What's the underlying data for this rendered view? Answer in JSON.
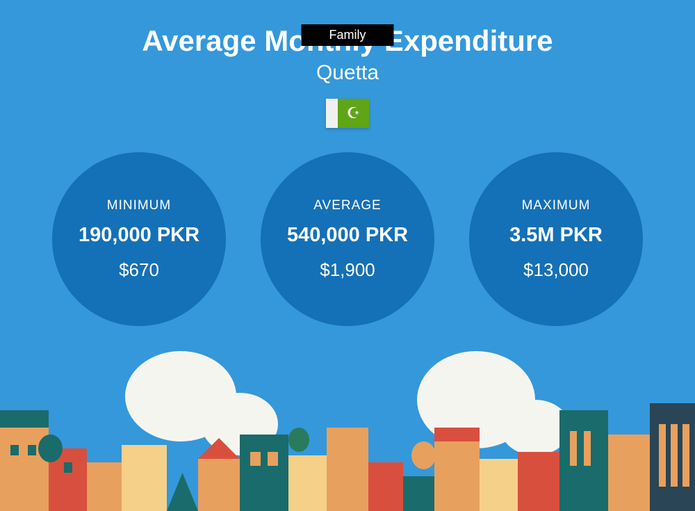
{
  "tag": "Family",
  "title": "Average Monthly Expenditure",
  "subtitle": "Quetta",
  "flag": {
    "symbol": "☪",
    "white_color": "#f0f0f0",
    "green_color": "#5fa516"
  },
  "colors": {
    "background": "#3498db",
    "circle_bg": "#1470b7",
    "text": "#ffffff",
    "tag_bg": "#000000"
  },
  "stats": {
    "minimum": {
      "label": "MINIMUM",
      "value": "190,000 PKR",
      "usd": "$670"
    },
    "average": {
      "label": "AVERAGE",
      "value": "540,000 PKR",
      "usd": "$1,900"
    },
    "maximum": {
      "label": "MAXIMUM",
      "value": "3.5M PKR",
      "usd": "$13,000"
    }
  },
  "cityscape": {
    "colors": {
      "orange": "#e8a05e",
      "red": "#d94f3e",
      "teal": "#1a6b6b",
      "yellow": "#f5d088",
      "dark_blue": "#2a4555",
      "cloud": "#f5f5f0",
      "green": "#2a7a5e"
    }
  }
}
